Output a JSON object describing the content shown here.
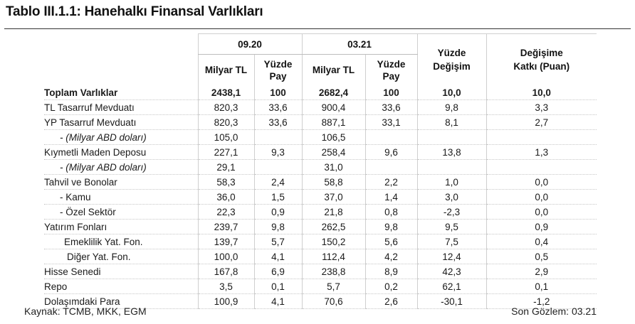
{
  "title": "Tablo III.1.1: Hanehalkı Finansal Varlıkları",
  "periods": [
    "09.20",
    "03.21"
  ],
  "subheaders": {
    "milyar_tl": "Milyar TL",
    "yuzde_pay_1": "Yüzde",
    "yuzde_pay_2": "Pay",
    "yuzde_degisim_1": "Yüzde",
    "yuzde_degisim_2": "Değişim",
    "katki_1": "Değişime",
    "katki_2": "Katkı (Puan)"
  },
  "rows": [
    {
      "label": "Toplam Varlıklar",
      "v1": "2438,1",
      "p1": "100",
      "v2": "2682,4",
      "p2": "100",
      "chg": "10,0",
      "ctb": "10,0"
    },
    {
      "label": "TL Tasarruf Mevduatı",
      "v1": "820,3",
      "p1": "33,6",
      "v2": "900,4",
      "p2": "33,6",
      "chg": "9,8",
      "ctb": "3,3"
    },
    {
      "label": "YP Tasarruf Mevduatı",
      "v1": "820,3",
      "p1": "33,6",
      "v2": "887,1",
      "p2": "33,1",
      "chg": "8,1",
      "ctb": "2,7"
    },
    {
      "label": "- (Milyar ABD doları)",
      "v1": "105,0",
      "p1": "",
      "v2": "106,5",
      "p2": "",
      "chg": "",
      "ctb": ""
    },
    {
      "label": "Kıymetli Maden Deposu",
      "v1": "227,1",
      "p1": "9,3",
      "v2": "258,4",
      "p2": "9,6",
      "chg": "13,8",
      "ctb": "1,3"
    },
    {
      "label": "- (Milyar ABD doları)",
      "v1": "29,1",
      "p1": "",
      "v2": "31,0",
      "p2": "",
      "chg": "",
      "ctb": ""
    },
    {
      "label": "Tahvil ve Bonolar",
      "v1": "58,3",
      "p1": "2,4",
      "v2": "58,8",
      "p2": "2,2",
      "chg": "1,0",
      "ctb": "0,0"
    },
    {
      "label": "- Kamu",
      "v1": "36,0",
      "p1": "1,5",
      "v2": "37,0",
      "p2": "1,4",
      "chg": "3,0",
      "ctb": "0,0"
    },
    {
      "label": "- Özel Sektör",
      "v1": "22,3",
      "p1": "0,9",
      "v2": "21,8",
      "p2": "0,8",
      "chg": "-2,3",
      "ctb": "0,0"
    },
    {
      "label": "Yatırım Fonları",
      "v1": "239,7",
      "p1": "9,8",
      "v2": "262,5",
      "p2": "9,8",
      "chg": "9,5",
      "ctb": "0,9"
    },
    {
      "label": "Emeklilik Yat. Fon.",
      "v1": "139,7",
      "p1": "5,7",
      "v2": "150,2",
      "p2": "5,6",
      "chg": "7,5",
      "ctb": "0,4"
    },
    {
      "label": "Diğer Yat. Fon.",
      "v1": "100,0",
      "p1": "4,1",
      "v2": "112,4",
      "p2": "4,2",
      "chg": "12,4",
      "ctb": "0,5"
    },
    {
      "label": "Hisse Senedi",
      "v1": "167,8",
      "p1": "6,9",
      "v2": "238,8",
      "p2": "8,9",
      "chg": "42,3",
      "ctb": "2,9"
    },
    {
      "label": "Repo",
      "v1": "3,5",
      "p1": "0,1",
      "v2": "5,7",
      "p2": "0,2",
      "chg": "62,1",
      "ctb": "0,1"
    },
    {
      "label": "Dolaşımdaki Para",
      "v1": "100,9",
      "p1": "4,1",
      "v2": "70,6",
      "p2": "2,6",
      "chg": "-30,1",
      "ctb": "-1,2"
    }
  ],
  "footer": {
    "source": "Kaynak: TCMB, MKK, EGM",
    "last_observation": "Son Gözlem: 03.21"
  }
}
